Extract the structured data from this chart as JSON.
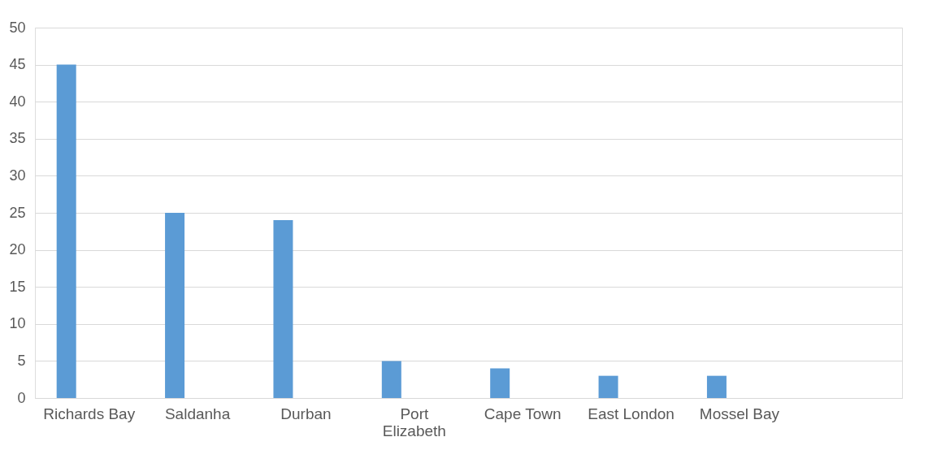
{
  "chart_data": {
    "type": "bar",
    "categories": [
      "Richards Bay",
      "Saldanha",
      "Durban",
      "Port Elizabeth",
      "Cape Town",
      "East London",
      "Mossel Bay",
      null
    ],
    "values": [
      45,
      25,
      24,
      5,
      4,
      3,
      3,
      null
    ],
    "color": "#5b9bd5",
    "ylim": [
      0,
      50
    ],
    "yticks": [
      0,
      5,
      10,
      15,
      20,
      25,
      30,
      35,
      40,
      45,
      50
    ],
    "grid": "y"
  }
}
